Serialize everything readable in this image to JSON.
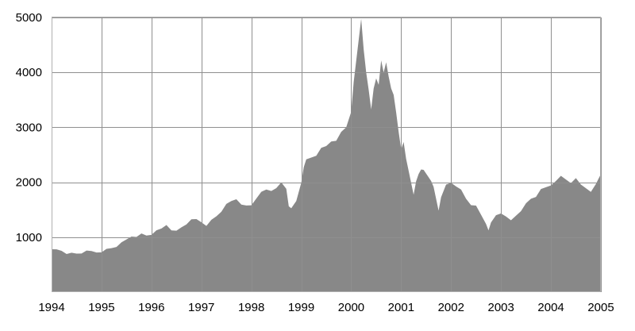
{
  "chart_data": {
    "type": "area",
    "title": "",
    "xlabel": "",
    "ylabel": "",
    "xlim": [
      1994,
      2005
    ],
    "ylim": [
      0,
      5000
    ],
    "x_ticks": [
      "1994",
      "1995",
      "1996",
      "1997",
      "1998",
      "1999",
      "2000",
      "2001",
      "2002",
      "2003",
      "2004",
      "2005"
    ],
    "y_ticks": [
      "1000",
      "2000",
      "3000",
      "4000",
      "5000"
    ],
    "grid": true,
    "legend": "none",
    "colors": {
      "fill": "#888888",
      "grid": "#8f8f8f",
      "axis_text": "#000000"
    },
    "series": [
      {
        "x": [
          1994.0,
          1994.1,
          1994.2,
          1994.3,
          1994.4,
          1994.5,
          1994.6,
          1994.7,
          1994.8,
          1994.9,
          1995.0,
          1995.1,
          1995.2,
          1995.3,
          1995.4,
          1995.5,
          1995.6,
          1995.7,
          1995.8,
          1995.9,
          1996.0,
          1996.1,
          1996.2,
          1996.3,
          1996.4,
          1996.5,
          1996.6,
          1996.7,
          1996.8,
          1996.9,
          1997.0,
          1997.1,
          1997.2,
          1997.3,
          1997.4,
          1997.5,
          1997.6,
          1997.7,
          1997.8,
          1997.9,
          1998.0,
          1998.1,
          1998.2,
          1998.3,
          1998.4,
          1998.5,
          1998.6,
          1998.7,
          1998.75,
          1998.8,
          1998.9,
          1999.0,
          1999.05,
          1999.1,
          1999.2,
          1999.3,
          1999.4,
          1999.5,
          1999.6,
          1999.7,
          1999.8,
          1999.9,
          2000.0,
          2000.05,
          2000.1,
          2000.15,
          2000.2,
          2000.25,
          2000.3,
          2000.35,
          2000.4,
          2000.45,
          2000.5,
          2000.55,
          2000.6,
          2000.65,
          2000.7,
          2000.75,
          2000.8,
          2000.85,
          2000.9,
          2000.95,
          2001.0,
          2001.05,
          2001.1,
          2001.15,
          2001.2,
          2001.25,
          2001.3,
          2001.35,
          2001.4,
          2001.45,
          2001.5,
          2001.55,
          2001.6,
          2001.65,
          2001.7,
          2001.75,
          2001.8,
          2001.9,
          2002.0,
          2002.1,
          2002.2,
          2002.3,
          2002.4,
          2002.5,
          2002.6,
          2002.7,
          2002.75,
          2002.8,
          2002.9,
          2003.0,
          2003.1,
          2003.2,
          2003.3,
          2003.4,
          2003.5,
          2003.6,
          2003.7,
          2003.8,
          2003.9,
          2004.0,
          2004.1,
          2004.2,
          2004.3,
          2004.4,
          2004.5,
          2004.6,
          2004.7,
          2004.8,
          2004.9,
          2005.0
        ],
        "y": [
          780,
          770,
          760,
          720,
          700,
          700,
          720,
          730,
          740,
          730,
          750,
          770,
          800,
          840,
          880,
          950,
          1020,
          1030,
          1050,
          1030,
          1060,
          1100,
          1150,
          1230,
          1150,
          1100,
          1180,
          1250,
          1300,
          1320,
          1280,
          1230,
          1300,
          1380,
          1480,
          1580,
          1650,
          1700,
          1620,
          1560,
          1580,
          1720,
          1800,
          1860,
          1850,
          1920,
          1980,
          1880,
          1580,
          1500,
          1650,
          2000,
          2300,
          2400,
          2450,
          2500,
          2600,
          2650,
          2750,
          2780,
          2900,
          3000,
          3300,
          3800,
          4200,
          4600,
          5000,
          4400,
          4000,
          3700,
          3300,
          3700,
          3900,
          3800,
          4200,
          4000,
          4200,
          3900,
          3700,
          3600,
          3300,
          2900,
          2600,
          2750,
          2400,
          2200,
          2000,
          1800,
          2000,
          2150,
          2250,
          2200,
          2150,
          2100,
          2050,
          1900,
          1700,
          1500,
          1700,
          1950,
          2000,
          1950,
          1850,
          1700,
          1600,
          1550,
          1400,
          1250,
          1150,
          1250,
          1400,
          1450,
          1350,
          1300,
          1400,
          1500,
          1600,
          1700,
          1750,
          1850,
          1900,
          1950,
          2050,
          2100,
          2050,
          2000,
          2050,
          1950,
          1900,
          1850,
          1950,
          2150
        ]
      }
    ]
  }
}
